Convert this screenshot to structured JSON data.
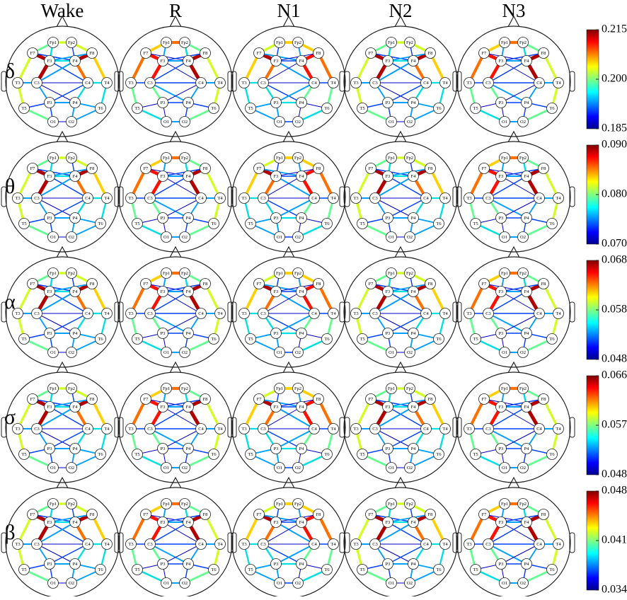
{
  "columns": [
    "Wake",
    "R",
    "N1",
    "N2",
    "N3"
  ],
  "electrodes": [
    "Fp1",
    "Fp2",
    "F7",
    "F3",
    "F4",
    "F8",
    "T3",
    "C3",
    "C4",
    "T4",
    "T5",
    "P3",
    "P4",
    "T6",
    "O1",
    "O2"
  ],
  "rows": [
    {
      "band": "δ",
      "ticks": [
        0.215,
        {
          "value": 0.2,
          "label": "0.200"
        },
        0.185
      ]
    },
    {
      "band": "θ",
      "ticks": [
        {
          "value": 0.09,
          "label": "0.090"
        },
        {
          "value": 0.08,
          "label": "0.080"
        },
        {
          "value": 0.07,
          "label": "0.070"
        }
      ]
    },
    {
      "band": "α",
      "ticks": [
        0.068,
        0.058,
        0.048
      ]
    },
    {
      "band": "σ",
      "ticks": [
        0.066,
        0.057,
        0.048
      ]
    },
    {
      "band": "β",
      "ticks": [
        0.048,
        0.041,
        0.034
      ]
    }
  ]
}
